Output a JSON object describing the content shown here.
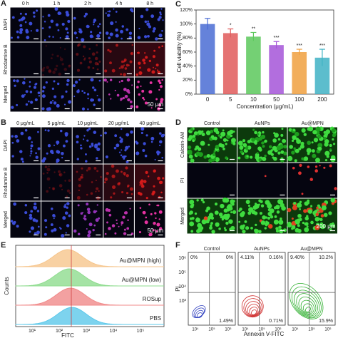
{
  "chart_data": {
    "type": "bar",
    "letter": "C",
    "ylabel": "Cell viability (%)",
    "xlabel": "Concentration (μg/mL)",
    "categories": [
      "0",
      "5",
      "10",
      "50",
      "100",
      "200"
    ],
    "values": [
      100,
      87,
      82,
      70,
      60,
      52
    ],
    "errors": [
      8,
      6,
      6,
      5,
      4,
      12
    ],
    "annotations": [
      null,
      "*",
      "**",
      "***",
      "***",
      "***"
    ],
    "colors": [
      "#4a6cd4",
      "#e05a5a",
      "#5cc85c",
      "#a455d8",
      "#f0a040",
      "#3fb2c4"
    ],
    "ylim": [
      0,
      120
    ],
    "yticks": [
      {
        "value": 0,
        "label": "0%"
      },
      {
        "value": 20,
        "label": "20%"
      },
      {
        "value": 40,
        "label": "40%"
      },
      {
        "value": 60,
        "label": "60%"
      },
      {
        "value": 80,
        "label": "80%"
      },
      {
        "value": 100,
        "label": "100%"
      },
      {
        "value": 120,
        "label": "120%"
      }
    ]
  },
  "panels": {
    "A": {
      "letter": "A",
      "columns": [
        "0 h",
        "1 h",
        "2 h",
        "4 h",
        "8 h"
      ],
      "rows": [
        "DAPI",
        "Rhodamine B",
        "Merged"
      ],
      "scale_bar": "50 μm"
    },
    "B": {
      "letter": "B",
      "columns": [
        "0 μg/mL",
        "5 μg/mL",
        "10 μg/mL",
        "20 μg/mL",
        "40 μg/mL"
      ],
      "rows": [
        "DAPI",
        "Rhodamine B",
        "Merged"
      ],
      "scale_bar": "50 μm"
    },
    "D": {
      "letter": "D",
      "columns": [
        "Control",
        "AuNPs",
        "Au@MPN"
      ],
      "rows": [
        "Calcein-AM",
        "PI",
        "Merged"
      ],
      "scale_bar": "200 μm"
    },
    "E": {
      "letter": "E",
      "ylabel": "Counts",
      "xlabel": "FITC",
      "traces": [
        "Au@MPN (high)",
        "Au@MPN (low)",
        "ROSup",
        "PBS"
      ],
      "xticks": [
        "10¹",
        "10²",
        "10³",
        "10⁴",
        "10⁵"
      ]
    },
    "F": {
      "letter": "F",
      "ylabel": "PI",
      "xlabel": "Annexin V-FITC",
      "yticks": [
        "10⁶",
        "10⁵",
        "10⁴",
        "10³"
      ],
      "xticks": [
        "10⁴",
        "10⁵",
        "10⁶"
      ],
      "plots": [
        {
          "title": "Control",
          "quadrants": {
            "ul": "0%",
            "ur": "0%",
            "lr": "1.49%"
          }
        },
        {
          "title": "AuNPs",
          "quadrants": {
            "ul": "4.11%",
            "ur": "0.16%",
            "lr": "0.71%"
          }
        },
        {
          "title": "Au@MPN",
          "quadrants": {
            "ul": "9.40%",
            "ur": "10.2%",
            "lr": "15.9%"
          }
        }
      ]
    }
  }
}
